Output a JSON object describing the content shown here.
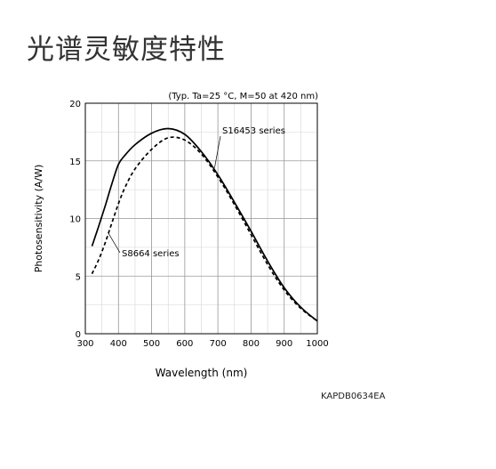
{
  "page": {
    "title": "光谱灵敏度特性",
    "code": "KAPDB0634EA"
  },
  "chart_data": {
    "type": "line",
    "note": "(Typ. Ta=25 °C, M=50 at 420 nm)",
    "xlabel": "Wavelength (nm)",
    "ylabel": "Photosensitivity (A/W)",
    "xlim": [
      300,
      1000
    ],
    "ylim": [
      0,
      20
    ],
    "xticks": [
      300,
      400,
      500,
      600,
      700,
      800,
      900,
      1000
    ],
    "yticks": [
      0,
      5,
      10,
      15,
      20
    ],
    "grid": true,
    "series": [
      {
        "name": "S16453 series",
        "style": "solid",
        "color": "#000000",
        "x": [
          320,
          340,
          360,
          380,
          400,
          420,
          450,
          500,
          550,
          600,
          650,
          700,
          750,
          800,
          850,
          900,
          950,
          1000
        ],
        "y": [
          7.6,
          9.3,
          11.1,
          13.0,
          14.7,
          15.5,
          16.4,
          17.4,
          17.8,
          17.3,
          15.8,
          13.8,
          11.4,
          8.9,
          6.3,
          4.0,
          2.3,
          1.1
        ]
      },
      {
        "name": "S8664 series",
        "style": "dashed",
        "color": "#000000",
        "x": [
          320,
          340,
          360,
          380,
          400,
          420,
          450,
          500,
          550,
          600,
          650,
          700,
          750,
          800,
          850,
          900,
          950,
          1000
        ],
        "y": [
          5.2,
          6.4,
          7.9,
          9.6,
          11.3,
          12.7,
          14.3,
          16.0,
          17.0,
          16.8,
          15.6,
          13.6,
          11.2,
          8.6,
          6.0,
          3.8,
          2.2,
          1.1
        ]
      }
    ]
  }
}
